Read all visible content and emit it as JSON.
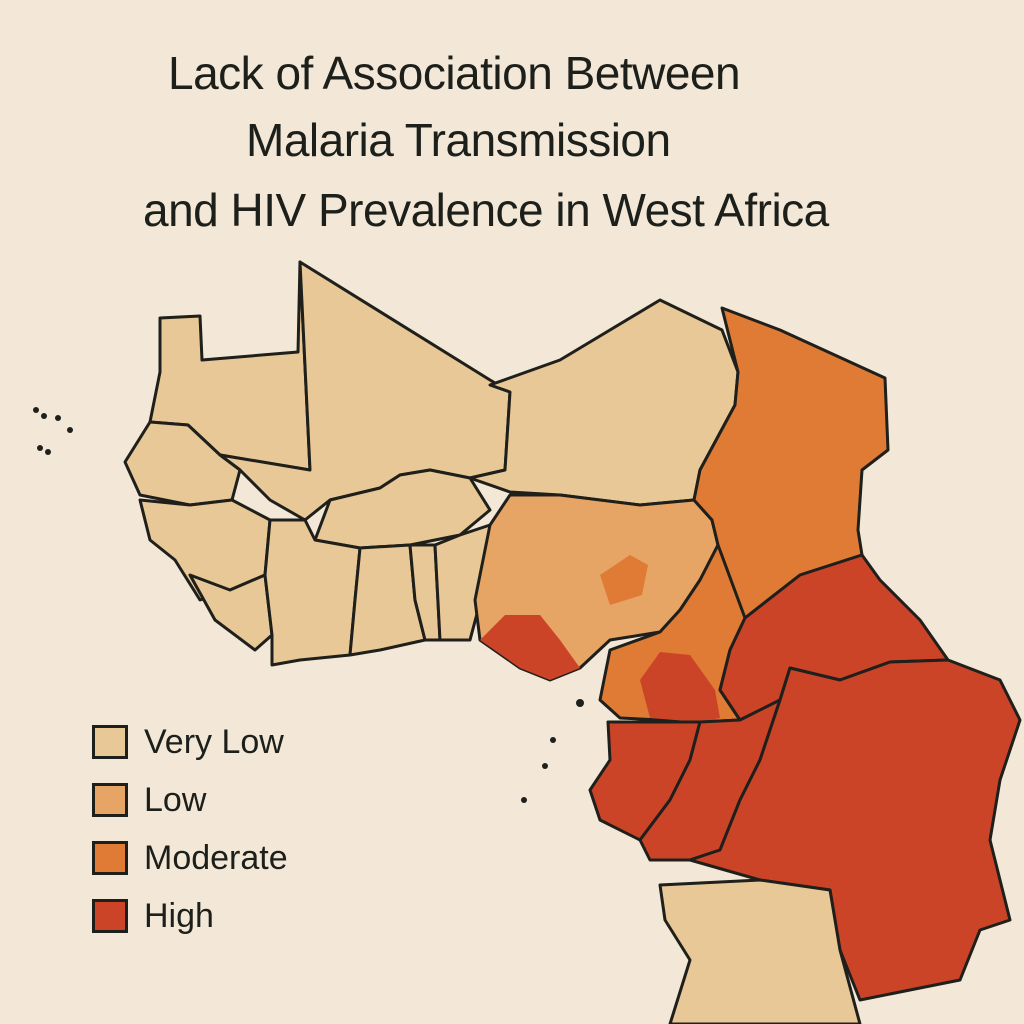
{
  "title": {
    "line1": "Lack of Association Between",
    "line2": "Malaria Transmission",
    "line3": "and HIV Prevalence in West Africa"
  },
  "legend": [
    {
      "label": "Very Low",
      "color": "#e8c896"
    },
    {
      "label": "Low",
      "color": "#e6a565"
    },
    {
      "label": "Moderate",
      "color": "#e07b36"
    },
    {
      "label": "High",
      "color": "#cc4428"
    }
  ],
  "colors": {
    "background": "#f3e8d7",
    "very_low": "#e8c896",
    "low": "#e6a565",
    "moderate": "#e07b36",
    "high": "#cc4428",
    "border": "#1f1f1b"
  }
}
